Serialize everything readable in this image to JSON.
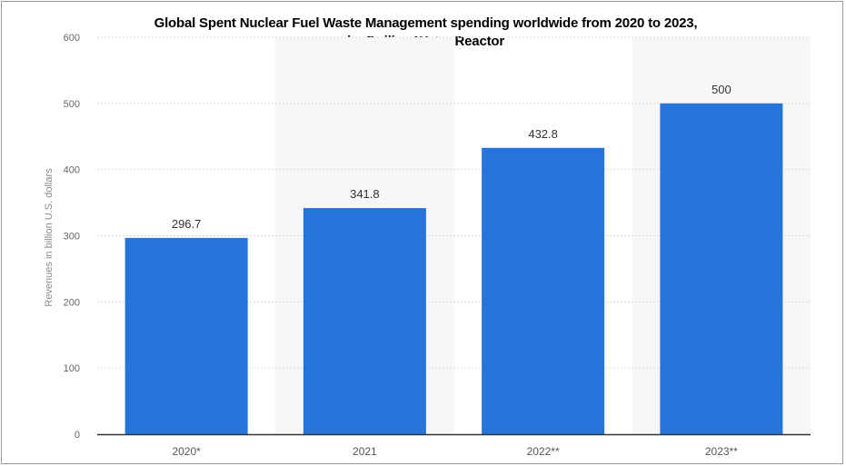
{
  "chart_data": {
    "type": "bar",
    "title": "Global Spent Nuclear Fuel Waste Management spending worldwide from 2020 to 2023,",
    "subtitle": "by Boiling Water Reactor",
    "categories": [
      "2020*",
      "2021",
      "2022**",
      "2023**"
    ],
    "values": [
      296.7,
      341.8,
      432.8,
      500
    ],
    "data_labels": [
      "296.7",
      "341.8",
      "432.8",
      "500"
    ],
    "ylabel": "Revenues in billion U.S. dollars",
    "xlabel": "",
    "ylim": [
      0,
      600
    ],
    "yticks": [
      0,
      100,
      200,
      300,
      400,
      500,
      600
    ],
    "grid": true,
    "bar_color": "#2673d9",
    "alt_band_color": "#f7f7f7",
    "grid_color": "#d9d9d9",
    "axis_color": "#333333"
  }
}
